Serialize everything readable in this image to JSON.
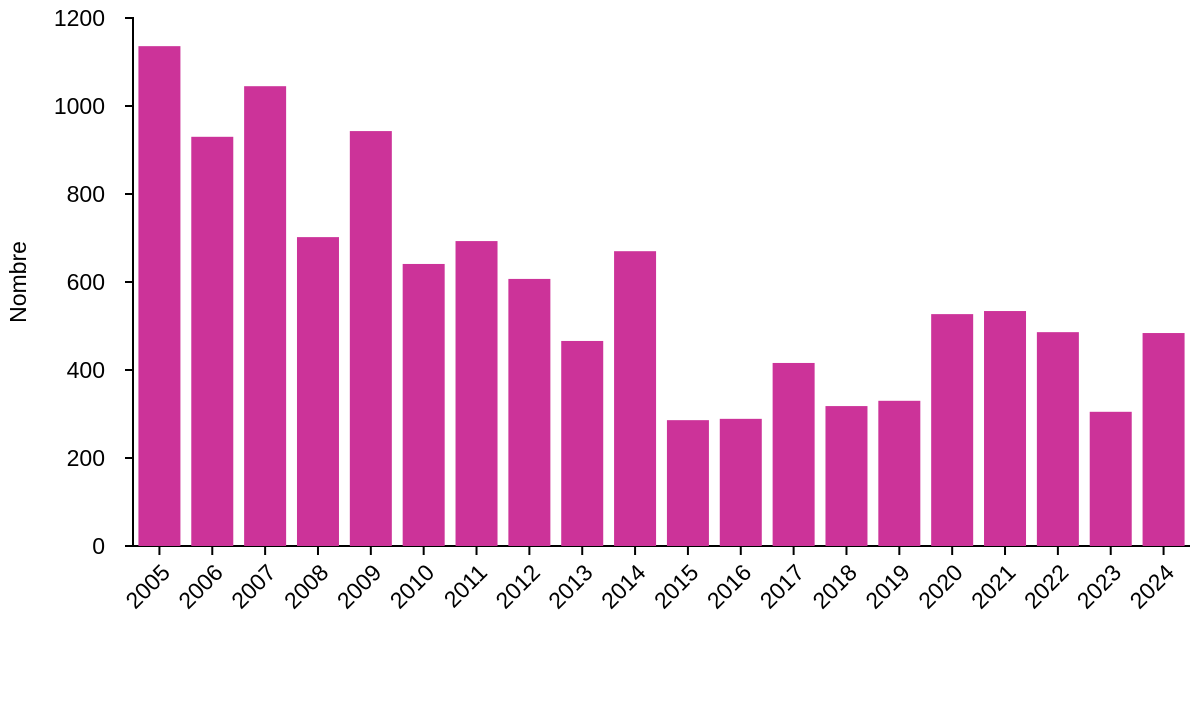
{
  "chart_data": {
    "type": "bar",
    "y_label": "Nombre",
    "categories": [
      "2005",
      "2006",
      "2007",
      "2008",
      "2009",
      "2010",
      "2011",
      "2012",
      "2013",
      "2014",
      "2015",
      "2016",
      "2017",
      "2018",
      "2019",
      "2020",
      "2021",
      "2022",
      "2023",
      "2024"
    ],
    "values": [
      1136,
      930,
      1045,
      702,
      943,
      641,
      693,
      607,
      466,
      670,
      286,
      289,
      416,
      318,
      330,
      527,
      534,
      486,
      305,
      484
    ],
    "color": "#cc3399",
    "ylim": [
      0,
      1200
    ],
    "yticks": [
      0,
      200,
      400,
      600,
      800,
      1000,
      1200
    ],
    "grid": false
  }
}
